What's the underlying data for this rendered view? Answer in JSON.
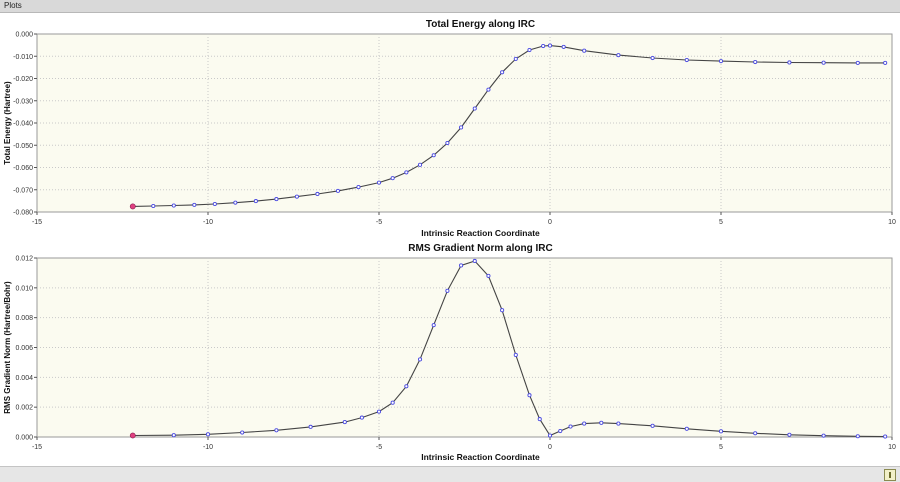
{
  "window": {
    "title": "Plots"
  },
  "chart_data": [
    {
      "type": "line",
      "title": "Total Energy along IRC",
      "xlabel": "Intrinsic Reaction Coordinate",
      "ylabel": "Total Energy (Hartree)",
      "xlim": [
        -15,
        10
      ],
      "ylim": [
        -0.08,
        0.0
      ],
      "x_ticks": [
        "-15",
        "-10",
        "-5",
        "0",
        "5",
        "10"
      ],
      "y_ticks": [
        "0.000",
        "-0.010",
        "-0.020",
        "-0.030",
        "-0.040",
        "-0.050",
        "-0.060",
        "-0.070",
        "-0.080"
      ],
      "grid": true,
      "line_color": "#444444",
      "marker_color": "#4a4ae0",
      "highlight_color": "#e04080",
      "series": [
        {
          "x": [
            -12.2,
            -11.6,
            -11.0,
            -10.4,
            -9.8,
            -9.2,
            -8.6,
            -8.0,
            -7.4,
            -6.8,
            -6.2,
            -5.6,
            -5.0,
            -4.6,
            -4.2,
            -3.8,
            -3.4,
            -3.0,
            -2.6,
            -2.2,
            -1.8,
            -1.4,
            -1.0,
            -0.6,
            -0.2,
            0.0,
            0.4,
            1.0,
            2.0,
            3.0,
            4.0,
            5.0,
            6.0,
            7.0,
            8.0,
            9.0,
            9.8
          ],
          "y": [
            -0.0775,
            -0.0773,
            -0.0771,
            -0.0768,
            -0.0764,
            -0.0758,
            -0.0751,
            -0.0742,
            -0.0731,
            -0.0719,
            -0.0705,
            -0.0688,
            -0.0668,
            -0.0648,
            -0.0622,
            -0.0588,
            -0.0545,
            -0.049,
            -0.042,
            -0.0335,
            -0.025,
            -0.0172,
            -0.0112,
            -0.0072,
            -0.0054,
            -0.0052,
            -0.0058,
            -0.0075,
            -0.0095,
            -0.0108,
            -0.0117,
            -0.0122,
            -0.0126,
            -0.0128,
            -0.0129,
            -0.013,
            -0.013
          ]
        }
      ]
    },
    {
      "type": "line",
      "title": "RMS Gradient Norm along IRC",
      "xlabel": "Intrinsic Reaction Coordinate",
      "ylabel": "RMS Gradient Norm (Hartree/Bohr)",
      "xlim": [
        -15,
        10
      ],
      "ylim": [
        0.0,
        0.012
      ],
      "x_ticks": [
        "-15",
        "-10",
        "-5",
        "0",
        "5",
        "10"
      ],
      "y_ticks": [
        "0.012",
        "0.010",
        "0.008",
        "0.006",
        "0.004",
        "0.002",
        "0.000"
      ],
      "grid": true,
      "line_color": "#444444",
      "marker_color": "#4a4ae0",
      "highlight_color": "#e04080",
      "series": [
        {
          "x": [
            -12.2,
            -11.0,
            -10.0,
            -9.0,
            -8.0,
            -7.0,
            -6.0,
            -5.5,
            -5.0,
            -4.6,
            -4.2,
            -3.8,
            -3.4,
            -3.0,
            -2.6,
            -2.2,
            -1.8,
            -1.4,
            -1.0,
            -0.6,
            -0.3,
            0.0,
            0.3,
            0.6,
            1.0,
            1.5,
            2.0,
            3.0,
            4.0,
            5.0,
            6.0,
            7.0,
            8.0,
            9.0,
            9.8
          ],
          "y": [
            0.0001,
            0.00012,
            0.00018,
            0.0003,
            0.00045,
            0.00068,
            0.001,
            0.0013,
            0.0017,
            0.0023,
            0.0034,
            0.0052,
            0.0075,
            0.0098,
            0.0115,
            0.0118,
            0.0108,
            0.0085,
            0.0055,
            0.0028,
            0.0012,
            0.0001,
            0.0004,
            0.0007,
            0.0009,
            0.00095,
            0.0009,
            0.00075,
            0.00055,
            0.00038,
            0.00025,
            0.00015,
            9e-05,
            5e-05,
            3e-05
          ]
        }
      ]
    }
  ]
}
